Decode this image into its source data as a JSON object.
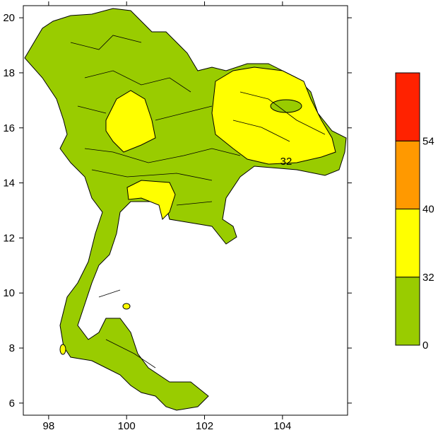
{
  "map": {
    "xlim": [
      97.35,
      105.67
    ],
    "ylim": [
      5.56,
      20.44
    ],
    "xticks": [
      98,
      100,
      102,
      104
    ],
    "yticks": [
      6,
      8,
      10,
      12,
      14,
      16,
      18,
      20
    ],
    "contour_label": "32"
  },
  "colorbar": {
    "levels": [
      0,
      32,
      40,
      54
    ],
    "colors": [
      "#99cc00",
      "#ffff00",
      "#ff9900",
      "#ff2200"
    ]
  }
}
